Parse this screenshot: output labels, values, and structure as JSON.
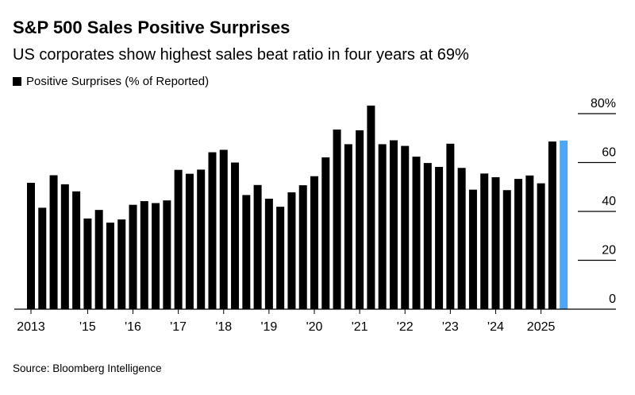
{
  "chart_data": {
    "type": "bar",
    "title": "S&P 500 Sales Positive Surprises",
    "subtitle": "US corporates show highest sales beat ratio in four years at 69%",
    "legend": [
      "Positive Surprises (% of Reported)"
    ],
    "legend_placement": "top-left",
    "source": "Source: Bloomberg Intelligence",
    "ylim": [
      0,
      80
    ],
    "yticks": [
      "0",
      "20",
      "40",
      "60",
      "80%"
    ],
    "ytick_values": [
      0,
      20,
      40,
      60,
      80
    ],
    "xticks": [
      {
        "label": "2013",
        "bar": 0
      },
      {
        "label": "'15",
        "bar": 5
      },
      {
        "label": "'16",
        "bar": 9
      },
      {
        "label": "'17",
        "bar": 13
      },
      {
        "label": "'18",
        "bar": 17
      },
      {
        "label": "'19",
        "bar": 21
      },
      {
        "label": "'20",
        "bar": 25
      },
      {
        "label": "'21",
        "bar": 29
      },
      {
        "label": "'22",
        "bar": 33
      },
      {
        "label": "'23",
        "bar": 37
      },
      {
        "label": "'24",
        "bar": 41
      },
      {
        "label": "2025",
        "bar": 45
      }
    ],
    "values": [
      51.7,
      41.5,
      54.8,
      51.1,
      48.2,
      37.1,
      40.6,
      35.4,
      36.7,
      42.7,
      44.2,
      43.4,
      44.5,
      57.0,
      55.4,
      57.1,
      64.2,
      65.2,
      60.0,
      46.7,
      50.8,
      45.2,
      41.9,
      47.8,
      50.7,
      54.4,
      62.1,
      73.5,
      67.5,
      73.2,
      83.3,
      67.5,
      69.1,
      66.8,
      62.4,
      59.8,
      58.2,
      67.7,
      57.8,
      48.9,
      55.5,
      54.0,
      48.7,
      53.3,
      54.7,
      51.5,
      68.6,
      69.0
    ],
    "colors": {
      "bar": "#000000",
      "highlight": "#4DA6F5"
    },
    "highlight_index": 47,
    "grid": false
  }
}
